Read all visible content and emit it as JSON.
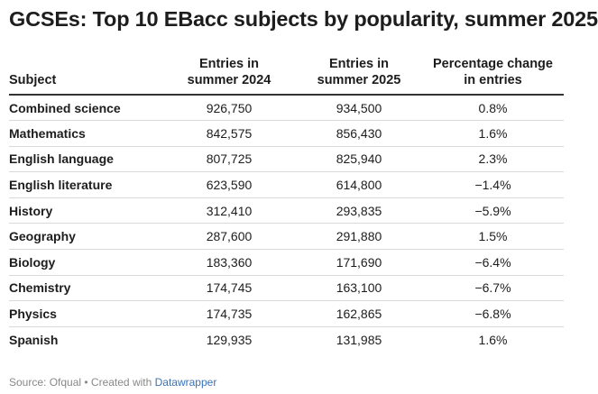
{
  "title": "GCSEs: Top 10 EBacc subjects by popularity, summer 2025",
  "table": {
    "headers": {
      "subject": [
        "Subject"
      ],
      "entries_2024": [
        "Entries in",
        "summer 2024"
      ],
      "entries_2025": [
        "Entries in",
        "summer 2025"
      ],
      "pct_change": [
        "Percentage change",
        "in entries"
      ]
    },
    "rows": [
      {
        "subject": "Combined science",
        "entries_2024": "926,750",
        "entries_2025": "934,500",
        "pct_change": "0.8%"
      },
      {
        "subject": "Mathematics",
        "entries_2024": "842,575",
        "entries_2025": "856,430",
        "pct_change": "1.6%"
      },
      {
        "subject": "English language",
        "entries_2024": "807,725",
        "entries_2025": "825,940",
        "pct_change": "2.3%"
      },
      {
        "subject": "English literature",
        "entries_2024": "623,590",
        "entries_2025": "614,800",
        "pct_change": "−1.4%"
      },
      {
        "subject": "History",
        "entries_2024": "312,410",
        "entries_2025": "293,835",
        "pct_change": "−5.9%"
      },
      {
        "subject": "Geography",
        "entries_2024": "287,600",
        "entries_2025": "291,880",
        "pct_change": "1.5%"
      },
      {
        "subject": "Biology",
        "entries_2024": "183,360",
        "entries_2025": "171,690",
        "pct_change": "−6.4%"
      },
      {
        "subject": "Chemistry",
        "entries_2024": "174,745",
        "entries_2025": "163,100",
        "pct_change": "−6.7%"
      },
      {
        "subject": "Physics",
        "entries_2024": "174,735",
        "entries_2025": "162,865",
        "pct_change": "−6.8%"
      },
      {
        "subject": "Spanish",
        "entries_2024": "129,935",
        "entries_2025": "131,985",
        "pct_change": "1.6%"
      }
    ]
  },
  "footer": {
    "source": "Source: Ofqual • Created with ",
    "link_text": "Datawrapper"
  },
  "colors": {
    "text": "#1d1d1d",
    "footer_text": "#888888",
    "link": "#3a72b5",
    "row_divider": "#d9d9d9",
    "header_rule": "#333333"
  }
}
